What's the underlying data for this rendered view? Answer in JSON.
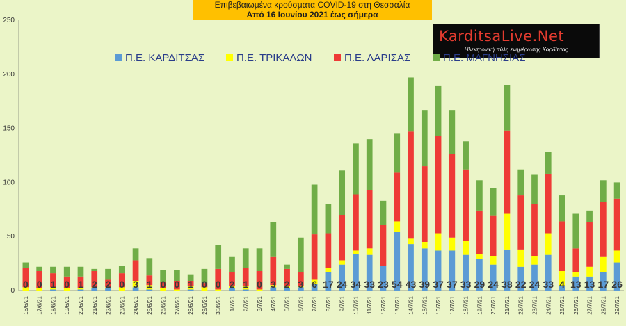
{
  "header": {
    "title_line1": "Επιβεβαιωμένα κρούσματα COVID-19 στη Θεσσαλία",
    "title_line2": "Από 16 Ιουνίου 2021 έως σήμερα"
  },
  "logo": {
    "name": "KarditsaLive.Net",
    "tagline": "Ηλεκτρονική πύλη ενημέρωσης Καρδίτσας"
  },
  "chart_data": {
    "type": "bar",
    "stacked": true,
    "ylim": [
      0,
      250
    ],
    "yticks": [
      0,
      50,
      100,
      150,
      200,
      250
    ],
    "grid": false,
    "legend_position": "top",
    "categories": [
      "16/6/21",
      "17/6/21",
      "18/6/21",
      "19/6/21",
      "20/6/21",
      "21/6/21",
      "22/6/21",
      "23/6/21",
      "24/6/21",
      "25/6/21",
      "26/6/21",
      "27/6/21",
      "28/6/21",
      "29/6/21",
      "30/6/21",
      "1/7/21",
      "2/7/21",
      "3/7/21",
      "4/7/21",
      "5/7/21",
      "6/7/21",
      "7/7/21",
      "8/7/21",
      "9/7/21",
      "10/7/21",
      "11/7/21",
      "12/7/21",
      "13/7/21",
      "14/7/21",
      "15/7/21",
      "16/7/21",
      "17/7/21",
      "18/7/21",
      "19/7/21",
      "20/7/21",
      "21/7/21",
      "22/7/21",
      "23/7/21",
      "24/7/21",
      "25/7/21",
      "26/7/21",
      "27/7/21",
      "28/7/21",
      "29/7/21"
    ],
    "series": [
      {
        "name": "Π.Ε. ΚΑΡΔΙΤΣΑΣ",
        "color": "#5b9bd5",
        "values": [
          0,
          0,
          1,
          0,
          1,
          2,
          2,
          0,
          3,
          1,
          0,
          0,
          1,
          0,
          0,
          2,
          1,
          0,
          3,
          2,
          3,
          6,
          17,
          24,
          34,
          33,
          23,
          54,
          43,
          39,
          37,
          37,
          33,
          29,
          24,
          38,
          22,
          24,
          33,
          4,
          13,
          13,
          17,
          26
        ]
      },
      {
        "name": "Π.Ε. ΤΡΙΚΑΛΩΝ",
        "color": "#ffff00",
        "values": [
          3,
          2,
          2,
          2,
          1,
          1,
          1,
          3,
          6,
          4,
          2,
          1,
          3,
          3,
          1,
          2,
          3,
          1,
          2,
          2,
          1,
          4,
          4,
          4,
          3,
          6,
          0,
          10,
          5,
          6,
          16,
          12,
          13,
          5,
          8,
          33,
          16,
          8,
          20,
          14,
          4,
          9,
          14,
          11
        ]
      },
      {
        "name": "Π.Ε. ΛΑΡΙΣΑΣ",
        "color": "#ee3b36",
        "values": [
          18,
          16,
          13,
          11,
          11,
          15,
          7,
          13,
          19,
          9,
          6,
          8,
          5,
          4,
          19,
          13,
          17,
          17,
          26,
          16,
          13,
          42,
          32,
          42,
          52,
          54,
          38,
          45,
          99,
          70,
          90,
          77,
          66,
          40,
          37,
          77,
          50,
          48,
          55,
          46,
          22,
          41,
          51,
          48
        ]
      },
      {
        "name": "Π.Ε. ΜΑΓΝΗΣΙΑΣ",
        "color": "#70ad47",
        "values": [
          5,
          4,
          6,
          9,
          9,
          2,
          10,
          7,
          11,
          16,
          11,
          10,
          6,
          13,
          22,
          14,
          18,
          21,
          32,
          4,
          32,
          46,
          27,
          41,
          47,
          47,
          22,
          36,
          50,
          52,
          46,
          41,
          26,
          28,
          26,
          42,
          24,
          27,
          20,
          24,
          32,
          11,
          20,
          15
        ]
      }
    ],
    "data_labels": [
      0,
      0,
      1,
      0,
      1,
      2,
      2,
      0,
      3,
      1,
      0,
      0,
      1,
      0,
      0,
      2,
      1,
      0,
      3,
      2,
      3,
      6,
      17,
      24,
      34,
      33,
      23,
      54,
      43,
      39,
      37,
      37,
      33,
      29,
      24,
      38,
      22,
      24,
      33,
      4,
      13,
      13,
      17,
      26
    ]
  }
}
